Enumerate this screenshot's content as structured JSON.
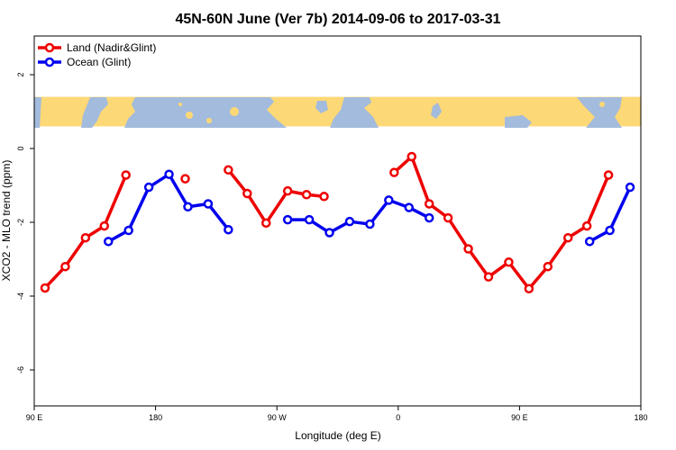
{
  "chart_data": {
    "type": "line",
    "title": "45N-60N June (Ver 7b)   2014-09-06 to 2017-03-31",
    "xlabel": "Longitude (deg E)",
    "ylabel": "XCO2 - MLO trend (ppm)",
    "xlim": [
      90,
      540
    ],
    "ylim": [
      -7,
      3
    ],
    "x_ticks": [
      {
        "value": 90,
        "label": "90 E"
      },
      {
        "value": 180,
        "label": "180"
      },
      {
        "value": 270,
        "label": "90 W"
      },
      {
        "value": 360,
        "label": "0"
      },
      {
        "value": 450,
        "label": "90 E"
      },
      {
        "value": 540,
        "label": "180"
      }
    ],
    "y_ticks": [
      {
        "value": 2,
        "label": "2"
      },
      {
        "value": 0,
        "label": "0"
      },
      {
        "value": -2,
        "label": "-2"
      },
      {
        "value": -4,
        "label": "-4"
      },
      {
        "value": -6,
        "label": "-6"
      }
    ],
    "map_band": {
      "ymin": 0.6,
      "ymax": 1.4,
      "land_color": "#fdd876",
      "ocean_color": "#a3bbdc"
    },
    "legend_position": "top-left",
    "series": [
      {
        "name": "Land (Nadir&Glint)",
        "color": "#ee0000",
        "segments": [
          [
            [
              98,
              -3.78
            ],
            [
              113,
              -3.2
            ],
            [
              128,
              -2.42
            ],
            [
              142,
              -2.1
            ],
            [
              158,
              -0.72
            ]
          ],
          [
            [
              202,
              -0.82
            ]
          ],
          [
            [
              234,
              -0.58
            ],
            [
              248,
              -1.22
            ],
            [
              262,
              -2.02
            ],
            [
              278,
              -1.15
            ],
            [
              292,
              -1.25
            ],
            [
              305,
              -1.3
            ]
          ],
          [
            [
              357,
              -0.65
            ],
            [
              370,
              -0.22
            ],
            [
              383,
              -1.5
            ],
            [
              397,
              -1.88
            ],
            [
              412,
              -2.72
            ],
            [
              427,
              -3.48
            ],
            [
              442,
              -3.08
            ],
            [
              457,
              -3.8
            ],
            [
              471,
              -3.2
            ],
            [
              486,
              -2.42
            ],
            [
              500,
              -2.1
            ],
            [
              516,
              -0.72
            ]
          ]
        ]
      },
      {
        "name": "Ocean (Glint)",
        "color": "#0000ee",
        "segments": [
          [
            [
              145,
              -2.52
            ],
            [
              160,
              -2.22
            ],
            [
              175,
              -1.05
            ],
            [
              190,
              -0.7
            ],
            [
              204,
              -1.58
            ],
            [
              219,
              -1.5
            ],
            [
              234,
              -2.2
            ]
          ],
          [
            [
              278,
              -1.93
            ],
            [
              294,
              -1.93
            ],
            [
              309,
              -2.28
            ],
            [
              324,
              -1.98
            ],
            [
              339,
              -2.05
            ],
            [
              353,
              -1.4
            ],
            [
              368,
              -1.6
            ],
            [
              383,
              -1.88
            ]
          ],
          [
            [
              502,
              -2.52
            ],
            [
              517,
              -2.22
            ],
            [
              532,
              -1.05
            ]
          ]
        ]
      }
    ]
  }
}
